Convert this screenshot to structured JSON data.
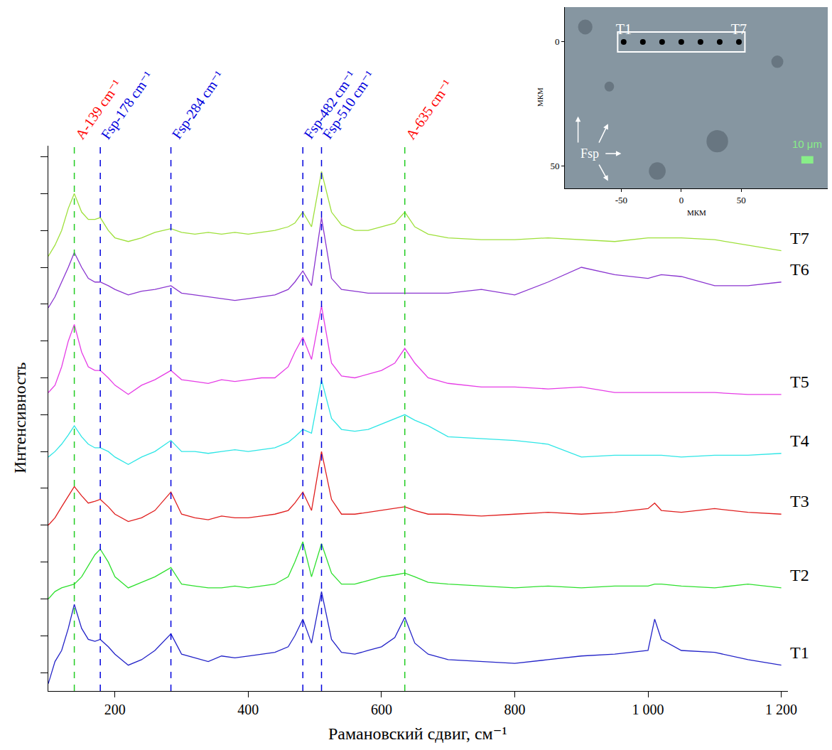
{
  "chart_data": [
    {
      "type": "line",
      "x_label": "Рамановский сдвиг, см⁻¹",
      "y_label": "Интенсивность",
      "xlim": [
        100,
        1210
      ],
      "xticks": [
        200,
        400,
        600,
        800,
        {
          "value": 1000,
          "label": "1 000"
        },
        {
          "value": 1200,
          "label": "1 200"
        }
      ],
      "ylim": [
        -0.5,
        14.3
      ],
      "yticks": [
        0,
        1,
        2,
        3,
        4,
        5,
        6,
        7,
        8,
        9,
        10,
        11,
        12,
        13,
        14
      ],
      "tick_labels": "x",
      "grid": false,
      "x": [
        100,
        110,
        120,
        130,
        139,
        150,
        160,
        170,
        178,
        190,
        200,
        220,
        240,
        260,
        284,
        300,
        320,
        340,
        360,
        380,
        400,
        420,
        440,
        460,
        470,
        482,
        495,
        510,
        525,
        540,
        560,
        580,
        600,
        620,
        635,
        650,
        670,
        700,
        750,
        800,
        850,
        900,
        950,
        1000,
        1010,
        1020,
        1050,
        1100,
        1150,
        1200
      ],
      "series": [
        {
          "name": "T1",
          "color": "#2323c8",
          "values": [
            -0.3,
            0.3,
            0.6,
            1.2,
            1.85,
            1.2,
            0.9,
            0.85,
            0.9,
            0.7,
            0.5,
            0.2,
            0.35,
            0.6,
            1.05,
            0.5,
            0.4,
            0.3,
            0.45,
            0.4,
            0.45,
            0.5,
            0.55,
            0.7,
            1.0,
            1.45,
            0.8,
            2.2,
            0.9,
            0.55,
            0.5,
            0.6,
            0.7,
            0.95,
            1.5,
            0.8,
            0.5,
            0.35,
            0.3,
            0.25,
            0.35,
            0.45,
            0.5,
            0.6,
            1.45,
            0.9,
            0.6,
            0.55,
            0.35,
            0.2
          ]
        },
        {
          "name": "T2",
          "color": "#2ee02e",
          "values": [
            2.0,
            2.2,
            2.3,
            2.35,
            2.4,
            2.6,
            2.9,
            3.2,
            3.35,
            3.0,
            2.6,
            2.3,
            2.45,
            2.6,
            2.85,
            2.4,
            2.35,
            2.3,
            2.3,
            2.35,
            2.3,
            2.35,
            2.4,
            2.6,
            3.0,
            3.55,
            2.6,
            3.5,
            2.7,
            2.4,
            2.4,
            2.5,
            2.6,
            2.65,
            2.7,
            2.6,
            2.45,
            2.4,
            2.35,
            2.3,
            2.35,
            2.3,
            2.35,
            2.35,
            2.4,
            2.4,
            2.35,
            2.3,
            2.4,
            2.3
          ]
        },
        {
          "name": "T3",
          "color": "#e01e1e",
          "values": [
            4.0,
            4.2,
            4.5,
            4.8,
            5.05,
            4.8,
            4.6,
            4.65,
            4.7,
            4.5,
            4.3,
            4.1,
            4.2,
            4.4,
            4.9,
            4.3,
            4.2,
            4.15,
            4.25,
            4.2,
            4.2,
            4.25,
            4.3,
            4.4,
            4.6,
            4.9,
            4.4,
            6.0,
            4.7,
            4.3,
            4.3,
            4.35,
            4.4,
            4.45,
            4.5,
            4.4,
            4.3,
            4.3,
            4.25,
            4.3,
            4.35,
            4.3,
            4.35,
            4.45,
            4.6,
            4.4,
            4.35,
            4.45,
            4.35,
            4.3
          ]
        },
        {
          "name": "T4",
          "color": "#2ee6e6",
          "values": [
            5.85,
            6.0,
            6.2,
            6.45,
            6.7,
            6.4,
            6.2,
            6.1,
            6.1,
            6.0,
            5.85,
            5.65,
            5.85,
            6.0,
            6.3,
            6.0,
            6.0,
            5.95,
            6.0,
            6.05,
            6.0,
            6.05,
            6.1,
            6.25,
            6.4,
            6.6,
            6.5,
            7.95,
            6.9,
            6.6,
            6.55,
            6.6,
            6.75,
            6.9,
            7.0,
            6.85,
            6.7,
            6.4,
            6.35,
            6.3,
            6.2,
            5.85,
            5.9,
            5.9,
            5.9,
            5.9,
            5.85,
            5.9,
            5.9,
            5.95
          ]
        },
        {
          "name": "T5",
          "color": "#e63ce6",
          "values": [
            7.6,
            7.8,
            8.3,
            9.0,
            9.45,
            8.7,
            8.3,
            8.2,
            8.2,
            8.0,
            7.8,
            7.55,
            7.8,
            7.95,
            8.2,
            7.95,
            7.9,
            7.85,
            7.95,
            7.9,
            7.95,
            8.0,
            8.0,
            8.3,
            8.7,
            9.1,
            8.5,
            9.95,
            8.4,
            8.05,
            8.0,
            8.1,
            8.2,
            8.4,
            8.8,
            8.4,
            8.0,
            7.85,
            7.75,
            7.75,
            7.7,
            7.75,
            7.6,
            7.6,
            7.6,
            7.6,
            7.6,
            7.6,
            7.55,
            7.55
          ]
        },
        {
          "name": "T6",
          "color": "#8a35d0",
          "values": [
            9.9,
            10.2,
            10.6,
            11.0,
            11.4,
            11.0,
            10.7,
            10.6,
            10.6,
            10.5,
            10.4,
            10.25,
            10.35,
            10.4,
            10.5,
            10.3,
            10.25,
            10.2,
            10.15,
            10.1,
            10.15,
            10.2,
            10.25,
            10.4,
            10.6,
            10.9,
            10.5,
            12.35,
            10.7,
            10.4,
            10.35,
            10.3,
            10.3,
            10.3,
            10.3,
            10.3,
            10.3,
            10.3,
            10.4,
            10.25,
            10.6,
            11.0,
            10.8,
            10.7,
            10.75,
            10.8,
            10.75,
            10.5,
            10.5,
            10.6
          ]
        },
        {
          "name": "T7",
          "color": "#9ee03a",
          "values": [
            11.3,
            11.6,
            12.0,
            12.6,
            13.0,
            12.5,
            12.3,
            12.3,
            12.35,
            12.0,
            11.8,
            11.7,
            11.8,
            11.95,
            12.05,
            11.95,
            11.9,
            11.95,
            11.9,
            11.95,
            11.9,
            11.95,
            12.0,
            12.1,
            12.2,
            12.5,
            12.1,
            13.6,
            12.5,
            12.15,
            12.0,
            12.0,
            12.1,
            12.2,
            12.5,
            12.1,
            11.9,
            11.8,
            11.75,
            11.75,
            11.8,
            11.75,
            11.7,
            11.8,
            11.8,
            11.8,
            11.8,
            11.75,
            11.6,
            11.45
          ]
        }
      ],
      "peaks": [
        {
          "label": "A-139 cm⁻¹",
          "x": 139,
          "color": "#ff0000",
          "line_color": "#22cc22",
          "line_style": "dashed"
        },
        {
          "label": "Fsp-178 cm⁻¹",
          "x": 178,
          "color": "#0000dd",
          "line_color": "#0000dd",
          "line_style": "dashed"
        },
        {
          "label": "Fsp-284 cm⁻¹",
          "x": 284,
          "color": "#0000dd",
          "line_color": "#0000dd",
          "line_style": "dashed"
        },
        {
          "label": "Fsp-482 cm⁻¹",
          "x": 482,
          "color": "#0000dd",
          "line_color": "#0000dd",
          "line_style": "dashed"
        },
        {
          "label": "Fsp-510 cm⁻¹",
          "x": 510,
          "color": "#0000dd",
          "line_color": "#0000dd",
          "line_style": "dashed"
        },
        {
          "label": "A-635 cm⁻¹",
          "x": 635,
          "color": "#ff0000",
          "line_color": "#22cc22",
          "line_style": "dashed"
        }
      ]
    },
    {
      "type": "scatter",
      "x_label": "МКМ",
      "y_label": "МКМ",
      "xlim": [
        -97,
        122
      ],
      "xticks": [
        {
          "value": -50,
          "label": "-50"
        },
        0,
        50
      ],
      "ylim": [
        59,
        -14
      ],
      "yticks": [
        0,
        50
      ],
      "x": [
        -48,
        -32,
        -16,
        0,
        16,
        32,
        48
      ],
      "values": [
        0,
        0,
        0,
        0,
        0,
        0,
        0
      ],
      "point_labels": [
        "T1",
        null,
        null,
        null,
        null,
        null,
        "T7"
      ],
      "color": "#000000",
      "marker": "circle",
      "annotations": [
        {
          "text": "Fsp"
        }
      ],
      "scale_bar": {
        "label": "10 μm",
        "length": 10,
        "color": "#88ee88"
      }
    }
  ]
}
